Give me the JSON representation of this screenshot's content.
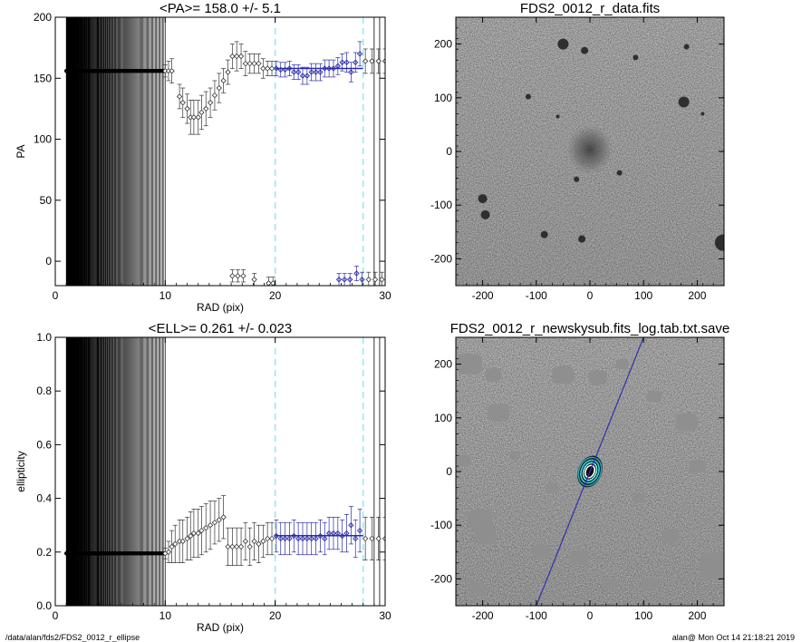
{
  "footer": {
    "left": "/data/alan/fds2/FDS2_0012_r_ellipse",
    "right": "alan@  Mon Oct 14 21:18:21 2019"
  },
  "colors": {
    "fit_points": "#2a2aa8",
    "fit_line": "#2a2aa8",
    "marker_lines": "#8ee8f0",
    "contours": "#40d0d8",
    "major_axis": "#3030b0"
  },
  "chart_data": [
    {
      "type": "scatter",
      "title": "<PA>= 158.0 +/-   5.1",
      "xlabel": "RAD (pix)",
      "ylabel": "PA",
      "xlim": [
        0,
        30
      ],
      "ylim": [
        -20,
        200
      ],
      "xticks": [
        "0",
        "10",
        "20",
        "30"
      ],
      "yticks": [
        "0",
        "50",
        "100",
        "150",
        "200"
      ],
      "inner_flat_value": 156,
      "inner_radius_range": [
        1,
        10
      ],
      "mean": 158.0,
      "fit_range": [
        20,
        28
      ],
      "vlines_cyan": [
        20,
        28
      ],
      "vlines_black": [
        29,
        29.5
      ],
      "points": [
        {
          "x": 10.0,
          "y": 156,
          "err": 5
        },
        {
          "x": 10.3,
          "y": 156,
          "err": 8
        },
        {
          "x": 10.6,
          "y": 156,
          "err": 10
        },
        {
          "x": 11.3,
          "y": 135,
          "err": 10
        },
        {
          "x": 11.6,
          "y": 130,
          "err": 12
        },
        {
          "x": 12.0,
          "y": 125,
          "err": 12
        },
        {
          "x": 12.3,
          "y": 118,
          "err": 14
        },
        {
          "x": 12.6,
          "y": 118,
          "err": 14
        },
        {
          "x": 13.0,
          "y": 118,
          "err": 14
        },
        {
          "x": 13.3,
          "y": 122,
          "err": 14
        },
        {
          "x": 13.7,
          "y": 125,
          "err": 14
        },
        {
          "x": 14.1,
          "y": 130,
          "err": 12
        },
        {
          "x": 14.5,
          "y": 136,
          "err": 12
        },
        {
          "x": 14.9,
          "y": 142,
          "err": 12
        },
        {
          "x": 15.3,
          "y": 148,
          "err": 10
        },
        {
          "x": 15.7,
          "y": 155,
          "err": 10
        },
        {
          "x": 16.1,
          "y": 168,
          "err": 10
        },
        {
          "x": 16.5,
          "y": 168,
          "err": 12
        },
        {
          "x": 16.9,
          "y": 168,
          "err": 10
        },
        {
          "x": 17.3,
          "y": 162,
          "err": 10
        },
        {
          "x": 17.7,
          "y": 162,
          "err": 8
        },
        {
          "x": 18.1,
          "y": 162,
          "err": 8
        },
        {
          "x": 18.5,
          "y": 162,
          "err": 8
        },
        {
          "x": 18.9,
          "y": 158,
          "err": 8
        },
        {
          "x": 19.3,
          "y": 158,
          "err": 6
        },
        {
          "x": 19.7,
          "y": 158,
          "err": 6
        },
        {
          "x": 20.1,
          "y": 158,
          "err": 6
        },
        {
          "x": 20.5,
          "y": 157,
          "err": 6
        },
        {
          "x": 20.9,
          "y": 157,
          "err": 6
        },
        {
          "x": 21.3,
          "y": 158,
          "err": 6
        },
        {
          "x": 21.7,
          "y": 155,
          "err": 6
        },
        {
          "x": 22.1,
          "y": 155,
          "err": 6
        },
        {
          "x": 22.5,
          "y": 152,
          "err": 7
        },
        {
          "x": 22.9,
          "y": 152,
          "err": 7
        },
        {
          "x": 23.3,
          "y": 155,
          "err": 7
        },
        {
          "x": 23.7,
          "y": 155,
          "err": 7
        },
        {
          "x": 24.1,
          "y": 155,
          "err": 7
        },
        {
          "x": 24.5,
          "y": 158,
          "err": 7
        },
        {
          "x": 24.9,
          "y": 158,
          "err": 7
        },
        {
          "x": 25.3,
          "y": 158,
          "err": 7
        },
        {
          "x": 25.7,
          "y": 160,
          "err": 7
        },
        {
          "x": 26.1,
          "y": 163,
          "err": 7
        },
        {
          "x": 26.5,
          "y": 163,
          "err": 8
        },
        {
          "x": 26.9,
          "y": 155,
          "err": 8
        },
        {
          "x": 27.3,
          "y": 163,
          "err": 8
        },
        {
          "x": 27.7,
          "y": 170,
          "err": 10
        },
        {
          "x": 28.2,
          "y": 164,
          "err": 10
        },
        {
          "x": 28.8,
          "y": 164,
          "err": 10
        },
        {
          "x": 29.4,
          "y": 164,
          "err": 10
        },
        {
          "x": 30.0,
          "y": 164,
          "err": 10
        },
        {
          "x": 16.1,
          "y": -12,
          "err": 5
        },
        {
          "x": 16.6,
          "y": -12,
          "err": 5
        },
        {
          "x": 17.1,
          "y": -12,
          "err": 5
        },
        {
          "x": 18.1,
          "y": -15,
          "err": 5
        },
        {
          "x": 19.4,
          "y": -18,
          "err": 5
        },
        {
          "x": 19.8,
          "y": -18,
          "err": 5
        },
        {
          "x": 25.8,
          "y": -15,
          "err": 5
        },
        {
          "x": 26.3,
          "y": -15,
          "err": 5
        },
        {
          "x": 26.8,
          "y": -15,
          "err": 5
        },
        {
          "x": 27.4,
          "y": -10,
          "err": 6
        },
        {
          "x": 27.9,
          "y": -15,
          "err": 6
        },
        {
          "x": 28.5,
          "y": -15,
          "err": 6
        },
        {
          "x": 29.1,
          "y": -15,
          "err": 6
        },
        {
          "x": 29.7,
          "y": -15,
          "err": 6
        }
      ]
    },
    {
      "type": "image",
      "title": "FDS2_0012_r_data.fits",
      "xlim": [
        -250,
        250
      ],
      "ylim": [
        -250,
        250
      ],
      "xticks": [
        "-200",
        "-100",
        "0",
        "100",
        "200"
      ],
      "yticks": [
        "-200",
        "-100",
        "0",
        "100",
        "200"
      ]
    },
    {
      "type": "scatter",
      "title": "<ELL>= 0.261 +/-  0.023",
      "xlabel": "RAD (pix)",
      "ylabel": "ellipticity",
      "xlim": [
        0,
        30
      ],
      "ylim": [
        0,
        1
      ],
      "xticks": [
        "0",
        "10",
        "20",
        "30"
      ],
      "yticks": [
        "0.0",
        "0.2",
        "0.4",
        "0.6",
        "0.8",
        "1.0"
      ],
      "inner_flat_value": 0.195,
      "inner_radius_range": [
        1,
        10
      ],
      "mean": 0.261,
      "fit_range": [
        20,
        28
      ],
      "vlines_cyan": [
        20,
        28
      ],
      "vlines_black": [
        29,
        29.5
      ],
      "points": [
        {
          "x": 10.0,
          "y": 0.195,
          "err": 0.02
        },
        {
          "x": 10.3,
          "y": 0.2,
          "err": 0.04
        },
        {
          "x": 10.6,
          "y": 0.22,
          "err": 0.06
        },
        {
          "x": 10.9,
          "y": 0.23,
          "err": 0.07
        },
        {
          "x": 11.3,
          "y": 0.24,
          "err": 0.08
        },
        {
          "x": 11.6,
          "y": 0.24,
          "err": 0.08
        },
        {
          "x": 12.0,
          "y": 0.25,
          "err": 0.08
        },
        {
          "x": 12.3,
          "y": 0.26,
          "err": 0.09
        },
        {
          "x": 12.6,
          "y": 0.27,
          "err": 0.09
        },
        {
          "x": 13.0,
          "y": 0.27,
          "err": 0.09
        },
        {
          "x": 13.3,
          "y": 0.28,
          "err": 0.09
        },
        {
          "x": 13.7,
          "y": 0.29,
          "err": 0.09
        },
        {
          "x": 14.1,
          "y": 0.3,
          "err": 0.09
        },
        {
          "x": 14.5,
          "y": 0.31,
          "err": 0.08
        },
        {
          "x": 14.9,
          "y": 0.32,
          "err": 0.08
        },
        {
          "x": 15.3,
          "y": 0.33,
          "err": 0.08
        },
        {
          "x": 15.7,
          "y": 0.22,
          "err": 0.07
        },
        {
          "x": 16.1,
          "y": 0.22,
          "err": 0.07
        },
        {
          "x": 16.5,
          "y": 0.22,
          "err": 0.07
        },
        {
          "x": 16.9,
          "y": 0.22,
          "err": 0.07
        },
        {
          "x": 17.3,
          "y": 0.24,
          "err": 0.07
        },
        {
          "x": 17.7,
          "y": 0.22,
          "err": 0.07
        },
        {
          "x": 18.1,
          "y": 0.24,
          "err": 0.07
        },
        {
          "x": 18.5,
          "y": 0.23,
          "err": 0.07
        },
        {
          "x": 18.9,
          "y": 0.24,
          "err": 0.06
        },
        {
          "x": 19.3,
          "y": 0.25,
          "err": 0.06
        },
        {
          "x": 19.7,
          "y": 0.25,
          "err": 0.06
        },
        {
          "x": 20.1,
          "y": 0.26,
          "err": 0.06
        },
        {
          "x": 20.5,
          "y": 0.25,
          "err": 0.06
        },
        {
          "x": 20.9,
          "y": 0.25,
          "err": 0.06
        },
        {
          "x": 21.3,
          "y": 0.25,
          "err": 0.06
        },
        {
          "x": 21.7,
          "y": 0.26,
          "err": 0.06
        },
        {
          "x": 22.1,
          "y": 0.25,
          "err": 0.06
        },
        {
          "x": 22.5,
          "y": 0.25,
          "err": 0.06
        },
        {
          "x": 22.9,
          "y": 0.25,
          "err": 0.06
        },
        {
          "x": 23.3,
          "y": 0.25,
          "err": 0.06
        },
        {
          "x": 23.7,
          "y": 0.25,
          "err": 0.06
        },
        {
          "x": 24.1,
          "y": 0.26,
          "err": 0.06
        },
        {
          "x": 24.5,
          "y": 0.25,
          "err": 0.06
        },
        {
          "x": 24.9,
          "y": 0.27,
          "err": 0.06
        },
        {
          "x": 25.3,
          "y": 0.27,
          "err": 0.06
        },
        {
          "x": 25.7,
          "y": 0.27,
          "err": 0.06
        },
        {
          "x": 26.1,
          "y": 0.26,
          "err": 0.06
        },
        {
          "x": 26.5,
          "y": 0.27,
          "err": 0.07
        },
        {
          "x": 26.9,
          "y": 0.3,
          "err": 0.07
        },
        {
          "x": 27.3,
          "y": 0.25,
          "err": 0.07
        },
        {
          "x": 27.7,
          "y": 0.28,
          "err": 0.08
        },
        {
          "x": 28.2,
          "y": 0.25,
          "err": 0.08
        },
        {
          "x": 28.8,
          "y": 0.25,
          "err": 0.08
        },
        {
          "x": 29.4,
          "y": 0.25,
          "err": 0.08
        },
        {
          "x": 30.0,
          "y": 0.25,
          "err": 0.08
        }
      ]
    },
    {
      "type": "image",
      "title": "FDS2_0012_r_newskysub.fits_log.tab.txt.save",
      "xlim": [
        -250,
        250
      ],
      "ylim": [
        -250,
        250
      ],
      "xticks": [
        "-200",
        "-100",
        "0",
        "100",
        "200"
      ],
      "yticks": [
        "-200",
        "-100",
        "0",
        "100",
        "200"
      ]
    }
  ]
}
